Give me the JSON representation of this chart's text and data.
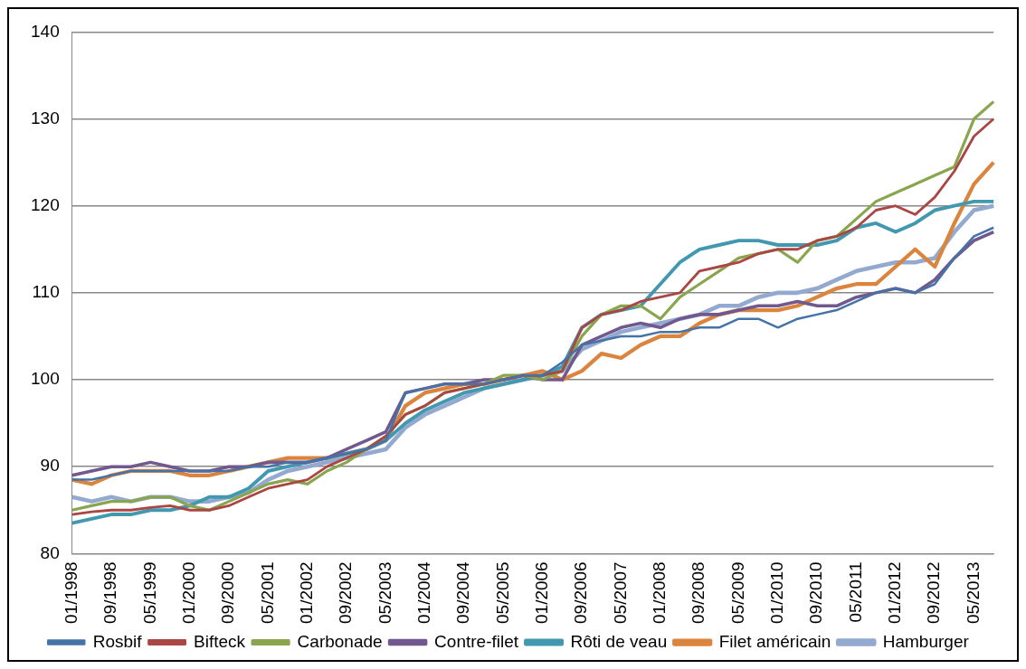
{
  "chart_data": {
    "type": "line",
    "categories": [
      "01/1998",
      null,
      "09/1998",
      null,
      "05/1999",
      null,
      "01/2000",
      null,
      "09/2000",
      null,
      "05/2001",
      null,
      "01/2002",
      null,
      "09/2002",
      null,
      "05/2003",
      null,
      "01/2004",
      null,
      "09/2004",
      null,
      "05/2005",
      null,
      "01/2006",
      null,
      "09/2006",
      null,
      "05/2007",
      null,
      "01/2008",
      null,
      "09/2008",
      null,
      "05/2009",
      null,
      "01/2010",
      null,
      "09/2010",
      null,
      "05/2011",
      null,
      "01/2012",
      null,
      "09/2012",
      null,
      "05/2013",
      null
    ],
    "ylim": [
      80,
      140
    ],
    "yticks": [
      80,
      90,
      100,
      110,
      120,
      130,
      140
    ],
    "grid": "y",
    "legend": "bottom",
    "marker": "none",
    "line_style": "solid",
    "series": [
      {
        "name": "Rosbif",
        "color": "#4572a7",
        "values": [
          88.5,
          88.5,
          89,
          89.5,
          89.5,
          89.5,
          89.5,
          89.5,
          89.5,
          90,
          90,
          90.5,
          90.5,
          91,
          91.5,
          92,
          93,
          98.5,
          99,
          99.5,
          99.5,
          99.5,
          100,
          100.5,
          100.5,
          102,
          104,
          104.5,
          105,
          105,
          105.5,
          105.5,
          106,
          106,
          107,
          107,
          106,
          107,
          107.5,
          108,
          109,
          110,
          110.5,
          110,
          111,
          114,
          116.5,
          117.5
        ]
      },
      {
        "name": "Bifteck",
        "color": "#aa4643",
        "values": [
          84.5,
          84.8,
          85,
          85,
          85.3,
          85.5,
          85,
          85,
          85.5,
          86.5,
          87.5,
          88,
          88.5,
          90,
          91,
          92,
          93.5,
          96,
          97,
          98.5,
          99,
          99.5,
          100,
          100.5,
          100.5,
          101,
          106,
          107.5,
          108,
          109,
          109.5,
          110,
          112.5,
          113,
          113.5,
          114.5,
          115,
          115,
          116,
          116.5,
          117.5,
          119.5,
          120,
          119,
          121,
          124,
          128,
          130
        ]
      },
      {
        "name": "Carbonade",
        "color": "#89a54e",
        "values": [
          85,
          85.5,
          86,
          86,
          86.5,
          86.5,
          85.5,
          85,
          86,
          87,
          88,
          88.5,
          88,
          89.5,
          90.5,
          92,
          93.5,
          96,
          97,
          98.5,
          99,
          99.5,
          100.5,
          100.5,
          100,
          101,
          105,
          107.5,
          108.5,
          108.5,
          107,
          109.5,
          111,
          112.5,
          114,
          114.5,
          115,
          113.5,
          116,
          116.5,
          118.5,
          120.5,
          121.5,
          122.5,
          123.5,
          124.5,
          130,
          132
        ]
      },
      {
        "name": "Contre-filet",
        "color": "#71588f",
        "values": [
          89,
          89.5,
          90,
          90,
          90.5,
          90,
          89.5,
          89.5,
          90,
          90,
          90.5,
          90.5,
          90.5,
          91,
          92,
          93,
          94,
          98.5,
          99,
          99.5,
          99.5,
          100,
          100,
          100.5,
          100,
          100,
          104,
          105,
          106,
          106.5,
          106,
          107,
          107.5,
          107.5,
          108,
          108.5,
          108.5,
          109,
          108.5,
          108.5,
          109.5,
          110,
          110.5,
          110,
          111.5,
          114,
          116,
          117
        ]
      },
      {
        "name": "Rôti de veau",
        "color": "#4198af",
        "values": [
          83.5,
          84,
          84.5,
          84.5,
          85,
          85,
          85.5,
          86.5,
          86.5,
          87.5,
          89.5,
          90,
          90.5,
          91,
          91.5,
          92,
          93,
          95,
          96.5,
          97.5,
          98.5,
          99,
          99.5,
          100,
          100.5,
          101.5,
          106,
          107.5,
          108,
          108.5,
          111,
          113.5,
          115,
          115.5,
          116,
          116,
          115.5,
          115.5,
          115.5,
          116,
          117.5,
          118,
          117,
          118,
          119.5,
          120,
          120.5,
          120.5
        ]
      },
      {
        "name": "Filet américain",
        "color": "#db843d",
        "values": [
          88.5,
          88,
          89,
          89.5,
          89.5,
          89.5,
          89,
          89,
          89.5,
          90,
          90.5,
          91,
          91,
          91,
          91.5,
          92,
          93,
          97,
          98.5,
          99,
          99.5,
          99.5,
          100,
          100.5,
          101,
          100,
          101,
          103,
          102.5,
          104,
          105,
          105,
          106.5,
          107.5,
          108,
          108,
          108,
          108.5,
          109.5,
          110.5,
          111,
          111,
          113,
          115,
          113,
          118,
          122.5,
          125
        ]
      },
      {
        "name": "Hamburger",
        "color": "#93a9cf",
        "values": [
          86.5,
          86,
          86.5,
          86,
          86.5,
          86.5,
          86,
          86,
          86.5,
          87,
          88.5,
          89.5,
          90,
          90.5,
          91,
          91.5,
          92,
          94.5,
          96,
          97,
          98,
          99,
          99.5,
          100,
          100.5,
          101,
          103.5,
          104.5,
          105.5,
          106,
          106.5,
          107,
          107.5,
          108.5,
          108.5,
          109.5,
          110,
          110,
          110.5,
          111.5,
          112.5,
          113,
          113.5,
          113.5,
          114,
          117,
          119.5,
          120
        ]
      }
    ]
  }
}
